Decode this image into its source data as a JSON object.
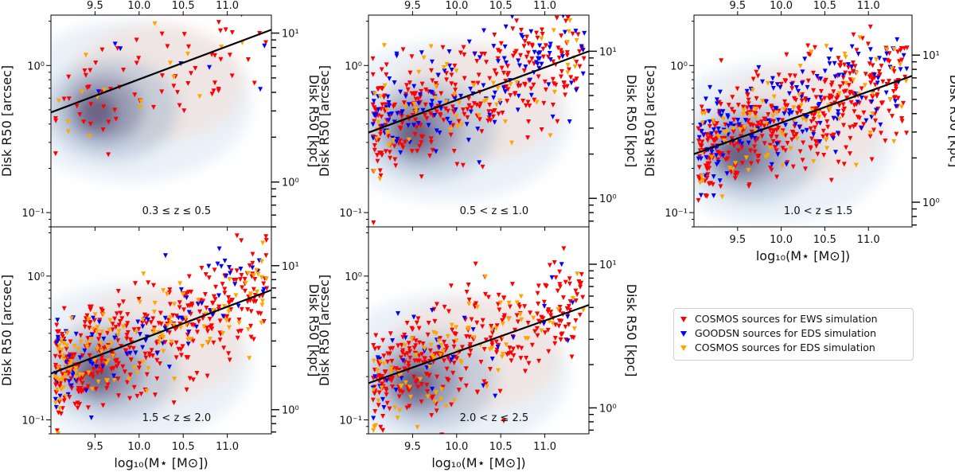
{
  "chart_data": {
    "type": "scatter",
    "x_label_text": "log10(M⋆ [M⊙])",
    "xlabel": "log₁₀(M⋆ [M⊙])",
    "ylabel_left": "Disk R50 [arcsec]",
    "ylabel_right": "Disk R50 [kpc]",
    "xlim": [
      9.0,
      11.5
    ],
    "xticks": [
      9.5,
      10.0,
      10.5,
      11.0
    ],
    "xtick_labels": [
      "9.5",
      "10.0",
      "10.5",
      "11.0"
    ],
    "legend": [
      {
        "label": "COSMOS sources for EWS simulation",
        "color": "#ff0000"
      },
      {
        "label": "GOODSN sources for EDS simulation",
        "color": "#0000ff"
      },
      {
        "label": "COSMOS sources for EDS simulation",
        "color": "#ffa500"
      }
    ],
    "panels": [
      {
        "name": "panel-z-0.3-0.5",
        "redshift_label": "0.3 ≤ z ≤ 0.5",
        "ylim_arcsec": [
          0.08,
          2.2
        ],
        "ylim_kpc_ticks": [
          "10⁰",
          "10¹"
        ],
        "ylim_kpc": [
          0.5,
          13.2
        ],
        "fit_line": {
          "x": [
            9.0,
            11.5
          ],
          "y": [
            0.48,
            1.75
          ]
        },
        "points": {
          "red": 70,
          "blue": 8,
          "orange": 18
        }
      },
      {
        "name": "panel-z-0.5-1.0",
        "redshift_label": "0.5 < z ≤ 1.0",
        "ylim_arcsec": [
          0.08,
          2.2
        ],
        "ylim_kpc": [
          0.64,
          17.6
        ],
        "fit_line": {
          "x": [
            9.0,
            11.5
          ],
          "y": [
            0.35,
            1.25
          ]
        },
        "points": {
          "red": 300,
          "blue": 140,
          "orange": 60
        }
      },
      {
        "name": "panel-z-1.0-1.5",
        "redshift_label": "1.0 < z ≤ 1.5",
        "ylim_arcsec": [
          0.08,
          2.2
        ],
        "ylim_kpc": [
          0.68,
          18.7
        ],
        "fit_line": {
          "x": [
            9.0,
            11.5
          ],
          "y": [
            0.25,
            0.85
          ]
        },
        "points": {
          "red": 420,
          "blue": 160,
          "orange": 90
        }
      },
      {
        "name": "panel-z-1.5-2.0",
        "redshift_label": "1.5 < z ≤ 2.0",
        "ylim_arcsec": [
          0.08,
          2.2
        ],
        "ylim_kpc": [
          0.68,
          18.6
        ],
        "fit_line": {
          "x": [
            9.0,
            11.5
          ],
          "y": [
            0.21,
            0.8
          ]
        },
        "points": {
          "red": 380,
          "blue": 90,
          "orange": 140
        }
      },
      {
        "name": "panel-z-2.0-2.5",
        "redshift_label": "2.0 < z ≤ 2.5",
        "ylim_arcsec": [
          0.08,
          2.2
        ],
        "ylim_kpc": [
          0.66,
          18.2
        ],
        "fit_line": {
          "x": [
            9.0,
            11.5
          ],
          "y": [
            0.18,
            0.63
          ]
        },
        "points": {
          "red": 330,
          "blue": 40,
          "orange": 90
        }
      }
    ],
    "yticks_arcsec_labels": [
      "10⁻¹",
      "10⁰"
    ],
    "yticks_kpc_labels": [
      "10⁰",
      "10¹"
    ]
  }
}
